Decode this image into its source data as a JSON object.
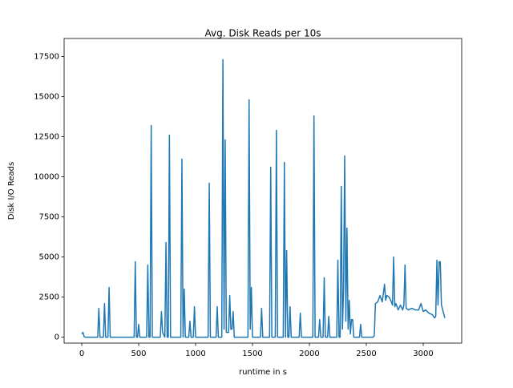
{
  "chart_data": {
    "type": "line",
    "title": "Avg. Disk Reads per 10s",
    "x_label": "runtime in s",
    "y_label": "Disk I/O Reads",
    "x": [
      0,
      10,
      20,
      30,
      140,
      150,
      160,
      190,
      200,
      210,
      230,
      240,
      250,
      460,
      470,
      480,
      490,
      500,
      510,
      570,
      580,
      590,
      600,
      610,
      620,
      690,
      700,
      710,
      730,
      740,
      750,
      760,
      770,
      780,
      870,
      880,
      890,
      900,
      910,
      940,
      950,
      960,
      980,
      990,
      1000,
      1110,
      1120,
      1130,
      1180,
      1190,
      1200,
      1230,
      1240,
      1250,
      1260,
      1270,
      1290,
      1300,
      1310,
      1320,
      1330,
      1340,
      1460,
      1470,
      1480,
      1490,
      1500,
      1570,
      1580,
      1590,
      1650,
      1660,
      1670,
      1700,
      1710,
      1720,
      1770,
      1780,
      1790,
      1800,
      1810,
      1820,
      1830,
      1840,
      1910,
      1920,
      1930,
      2030,
      2040,
      2050,
      2080,
      2090,
      2100,
      2120,
      2130,
      2140,
      2160,
      2170,
      2180,
      2240,
      2250,
      2260,
      2270,
      2280,
      2290,
      2300,
      2310,
      2320,
      2330,
      2340,
      2350,
      2360,
      2370,
      2380,
      2390,
      2440,
      2450,
      2460,
      2560,
      2570,
      2580,
      2600,
      2620,
      2640,
      2660,
      2670,
      2680,
      2700,
      2720,
      2730,
      2740,
      2750,
      2760,
      2780,
      2800,
      2820,
      2830,
      2840,
      2850,
      2870,
      2900,
      2930,
      2960,
      2980,
      3000,
      3020,
      3050,
      3080,
      3100,
      3110,
      3120,
      3130,
      3140,
      3150,
      3160,
      3190
    ],
    "series": [
      {
        "name": "Disk I/O Reads",
        "color": "#1f77b4",
        "values": [
          200,
          300,
          50,
          0,
          0,
          1800,
          0,
          0,
          2100,
          0,
          0,
          3100,
          0,
          0,
          4700,
          0,
          0,
          800,
          0,
          0,
          4500,
          0,
          0,
          13200,
          0,
          0,
          1600,
          300,
          0,
          5900,
          0,
          0,
          12600,
          0,
          0,
          11100,
          0,
          3000,
          0,
          0,
          1000,
          0,
          0,
          1900,
          0,
          0,
          9600,
          0,
          0,
          1900,
          0,
          0,
          17300,
          500,
          12300,
          300,
          300,
          2600,
          500,
          500,
          1600,
          0,
          0,
          14800,
          500,
          3100,
          0,
          0,
          1800,
          0,
          0,
          10600,
          0,
          0,
          12900,
          0,
          0,
          10900,
          0,
          5400,
          0,
          0,
          1900,
          0,
          0,
          1500,
          0,
          0,
          13800,
          0,
          0,
          1100,
          0,
          0,
          3700,
          0,
          0,
          1300,
          0,
          0,
          4800,
          0,
          0,
          9400,
          500,
          3000,
          11300,
          1000,
          6800,
          500,
          2300,
          200,
          1100,
          1100,
          0,
          0,
          800,
          0,
          0,
          100,
          2100,
          2200,
          2600,
          2200,
          3300,
          2300,
          2600,
          2500,
          2200,
          2000,
          5000,
          1900,
          2100,
          1700,
          2000,
          1700,
          2000,
          4500,
          1800,
          1700,
          1800,
          1700,
          1700,
          2100,
          1600,
          1700,
          1500,
          1400,
          1200,
          1300,
          4800,
          2000,
          4700,
          4700,
          2000,
          1200
        ]
      }
    ],
    "xlim": [
      -155,
      3338
    ],
    "ylim": [
      -370,
      18620
    ],
    "xticks": [
      0,
      500,
      1000,
      1500,
      2000,
      2500,
      3000
    ],
    "yticks": [
      0,
      2500,
      5000,
      7500,
      10000,
      12500,
      15000,
      17500
    ]
  }
}
